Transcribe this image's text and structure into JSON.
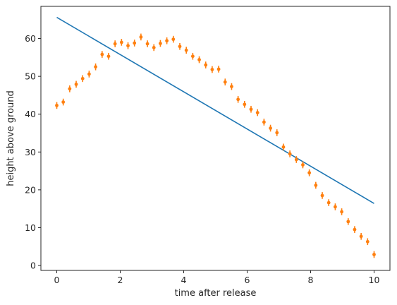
{
  "chart_data": {
    "type": "scatter",
    "xlabel": "time after release",
    "ylabel": "height above ground",
    "xlim": [
      -0.5,
      10.5
    ],
    "ylim": [
      -1.3,
      68.5
    ],
    "xticks": [
      0,
      2,
      4,
      6,
      8,
      10
    ],
    "yticks": [
      0,
      10,
      20,
      30,
      40,
      50,
      60
    ],
    "grid": false,
    "series": [
      {
        "kind": "line",
        "color": "#1f77b4",
        "x": [
          0,
          10
        ],
        "y": [
          65.6,
          16.4
        ]
      },
      {
        "kind": "errorbar-points",
        "color": "#ff7f0e",
        "error": 0.9,
        "x": [
          0,
          0.204,
          0.408,
          0.612,
          0.816,
          1.02,
          1.224,
          1.429,
          1.633,
          1.837,
          2.041,
          2.245,
          2.449,
          2.653,
          2.857,
          3.061,
          3.265,
          3.469,
          3.673,
          3.878,
          4.082,
          4.286,
          4.49,
          4.694,
          4.898,
          5.102,
          5.306,
          5.51,
          5.714,
          5.918,
          6.122,
          6.327,
          6.531,
          6.735,
          6.939,
          7.143,
          7.347,
          7.551,
          7.755,
          7.959,
          8.163,
          8.367,
          8.571,
          8.776,
          8.98,
          9.184,
          9.388,
          9.592,
          9.796,
          10
        ],
        "y": [
          42.3,
          43.2,
          46.7,
          47.9,
          49.4,
          50.6,
          52.5,
          55.8,
          55.3,
          58.6,
          59.0,
          58.1,
          58.8,
          60.4,
          58.6,
          57.6,
          58.7,
          59.4,
          59.8,
          57.9,
          56.9,
          55.3,
          54.4,
          53.0,
          51.8,
          51.9,
          48.5,
          47.3,
          43.9,
          42.6,
          41.3,
          40.4,
          37.9,
          36.3,
          35.1,
          31.3,
          29.5,
          28.0,
          26.6,
          24.5,
          21.2,
          18.5,
          16.6,
          15.5,
          14.2,
          11.6,
          9.5,
          7.7,
          6.3,
          2.9
        ]
      }
    ]
  }
}
